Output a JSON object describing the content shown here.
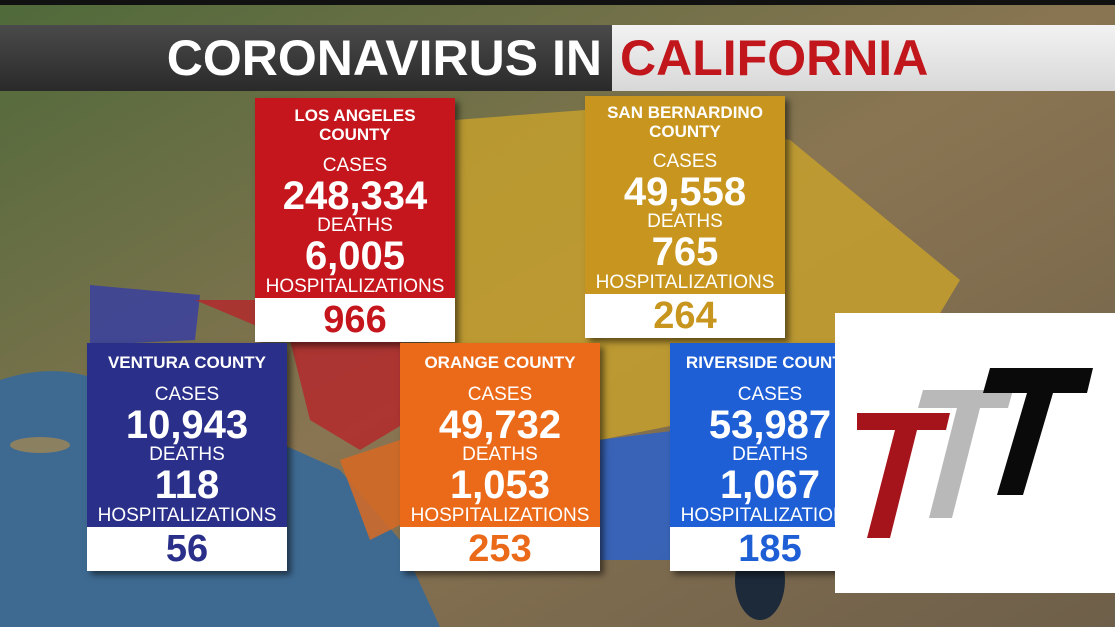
{
  "header": {
    "title_left": "CORONAVIRUS IN",
    "title_right": "CALIFORNIA"
  },
  "counties": [
    {
      "name": "LOS ANGELES COUNTY",
      "cases_label": "CASES",
      "cases": "248,334",
      "deaths_label": "DEATHS",
      "deaths": "6,005",
      "hosp_label": "HOSPITALIZATIONS",
      "hospitalizations": "966"
    },
    {
      "name": "SAN BERNARDINO COUNTY",
      "cases_label": "CASES",
      "cases": "49,558",
      "deaths_label": "DEATHS",
      "deaths": "765",
      "hosp_label": "HOSPITALIZATIONS",
      "hospitalizations": "264"
    },
    {
      "name": "VENTURA COUNTY",
      "cases_label": "CASES",
      "cases": "10,943",
      "deaths_label": "DEATHS",
      "deaths": "118",
      "hosp_label": "HOSPITALIZATIONS",
      "hospitalizations": "56"
    },
    {
      "name": "ORANGE COUNTY",
      "cases_label": "CASES",
      "cases": "49,732",
      "deaths_label": "DEATHS",
      "deaths": "1,053",
      "hosp_label": "HOSPITALIZATIONS",
      "hospitalizations": "253"
    },
    {
      "name": "RIVERSIDE COUNTY",
      "cases_label": "CASES",
      "cases": "53,987",
      "deaths_label": "DEATHS",
      "deaths": "1,067",
      "hosp_label": "HOSPITALIZATIONS",
      "hospitalizations": "185"
    }
  ]
}
